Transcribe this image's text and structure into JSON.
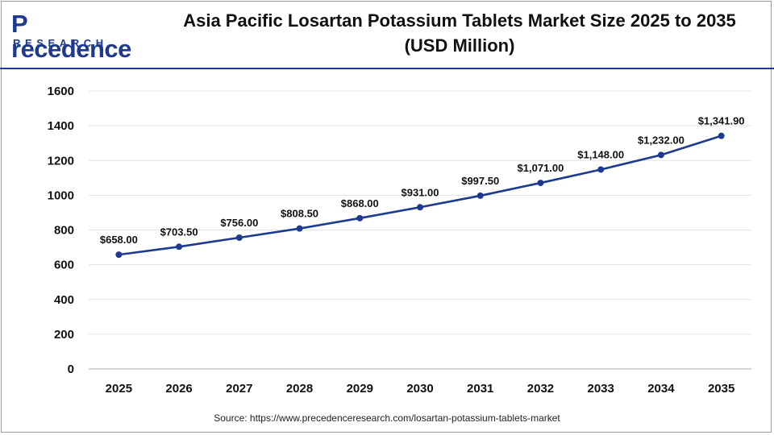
{
  "brand": {
    "name_top": "recedence",
    "name_initial": "P",
    "name_sub": "RESEARCH"
  },
  "title": "Asia Pacific Losartan Potassium Tablets Market Size 2025 to 2035 (USD Million)",
  "source": "Source: https://www.precedenceresearch.com/losartan-potassium-tablets-market",
  "colors": {
    "line": "#1d3a8f",
    "accent": "#1d3a8f",
    "grid": "#e3e3e3",
    "axis": "#bdbdbd"
  },
  "chart_data": {
    "type": "line",
    "title": "Asia Pacific Losartan Potassium Tablets Market Size 2025 to 2035 (USD Million)",
    "x": [
      "2025",
      "2026",
      "2027",
      "2028",
      "2029",
      "2030",
      "2031",
      "2032",
      "2033",
      "2034",
      "2035"
    ],
    "series": [
      {
        "values": [
          658.0,
          703.5,
          756.0,
          808.5,
          868.0,
          931.0,
          997.5,
          1071.0,
          1148.0,
          1232.0,
          1341.9
        ],
        "labels": [
          "$658.00",
          "$703.50",
          "$756.00",
          "$808.50",
          "$868.00",
          "$931.00",
          "$997.50",
          "$1,071.00",
          "$1,148.00",
          "$1,232.00",
          "$1,341.90"
        ]
      }
    ],
    "ylim": [
      0,
      1600
    ],
    "yticks": [
      "0",
      "200",
      "400",
      "600",
      "800",
      "1000",
      "1200",
      "1400",
      "1600"
    ],
    "grid": true,
    "legend": "none"
  }
}
